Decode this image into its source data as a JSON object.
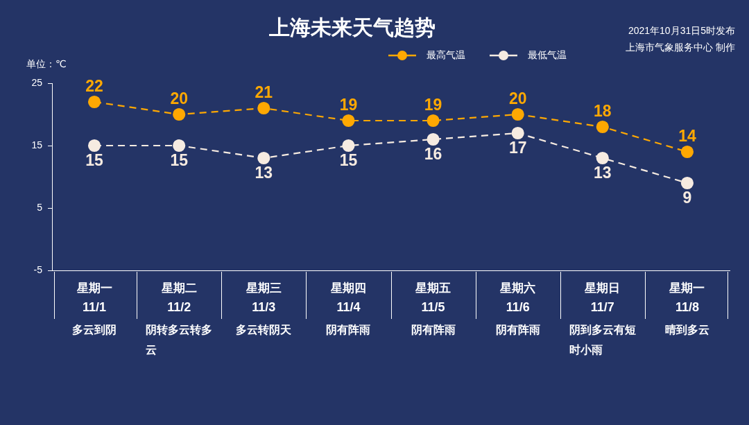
{
  "chart_data": {
    "type": "line",
    "title": "上海未来天气趋势",
    "ylabel": "单位：℃",
    "annotations": [
      "2021年10月31日5时发布",
      "上海市气象服务中心 制作"
    ],
    "categories": [
      "星期一\n11/1\n多云到阴",
      "星期二\n11/2\n阴转多云转多云",
      "星期三\n11/3\n多云转阴天",
      "星期四\n11/4\n阴有阵雨",
      "星期五\n11/5\n阴有阵雨",
      "星期六\n11/6\n阴有阵雨",
      "星期日\n11/7\n阴到多云有短时小雨",
      "星期一\n11/8\n晴到多云"
    ],
    "series": [
      {
        "name": "最高气温",
        "color": "#fea802",
        "values": [
          22,
          20,
          21,
          19,
          19,
          20,
          18,
          14
        ]
      },
      {
        "name": "最低气温",
        "color": "#f6ebe1",
        "values": [
          15,
          15,
          13,
          15,
          16,
          17,
          13,
          9
        ]
      }
    ],
    "ylim": [
      -5,
      25
    ],
    "yticks": [
      -5,
      5,
      15,
      25
    ],
    "grid": false,
    "legend": "top right",
    "marker": "circle",
    "line_style": "dashed",
    "data_labels": true
  }
}
